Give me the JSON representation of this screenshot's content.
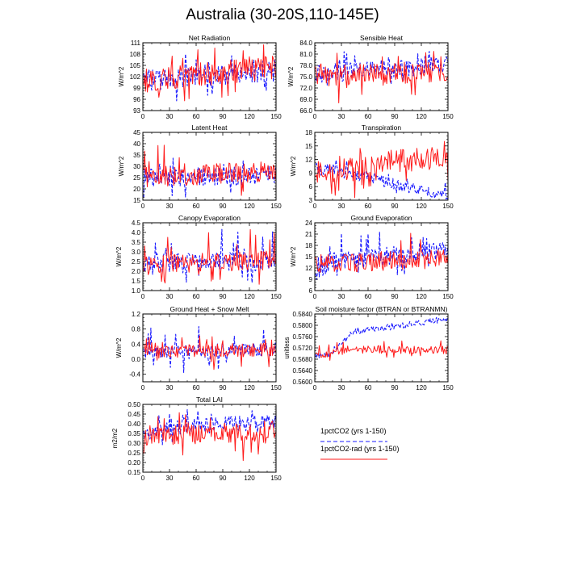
{
  "page": {
    "title": "Australia (30-20S,110-145E)"
  },
  "legend": [
    {
      "label": "1pctCO2 (yrs 1-150)",
      "color": "#1a1aff",
      "dashed": true
    },
    {
      "label": "1pctCO2-rad (yrs 1-150)",
      "color": "#ff1a1a",
      "dashed": false
    }
  ],
  "chart_data": [
    {
      "type": "line",
      "title": "Net Radiation",
      "ylabel": "W/m^2",
      "xlim": [
        0,
        150
      ],
      "ylim": [
        93,
        111
      ],
      "x_ticks": [
        0,
        30,
        60,
        90,
        120,
        150
      ],
      "y_ticks": [
        93,
        96,
        99,
        102,
        105,
        108,
        111
      ],
      "series_desc": [
        {
          "name": "1pctCO2",
          "mean": [
            [
              0,
              101
            ],
            [
              150,
              103.5
            ]
          ],
          "amp": 3.0,
          "spike": 4.0,
          "trough": 4.0
        },
        {
          "name": "1pctCO2-rad",
          "mean": [
            [
              0,
              101
            ],
            [
              150,
              104.5
            ]
          ],
          "amp": 3.2,
          "spike": 5.0,
          "trough": 5.0
        }
      ]
    },
    {
      "type": "line",
      "title": "Sensible Heat",
      "ylabel": "W/m^2",
      "xlim": [
        0,
        150
      ],
      "ylim": [
        66,
        84
      ],
      "x_ticks": [
        0,
        30,
        60,
        90,
        120,
        150
      ],
      "y_ticks": [
        66.0,
        69.0,
        72.0,
        75.0,
        78.0,
        81.0,
        84.0
      ],
      "y_tick_decimals": 1,
      "series_desc": [
        {
          "name": "1pctCO2",
          "mean": [
            [
              0,
              75.5
            ],
            [
              150,
              78.5
            ]
          ],
          "amp": 2.5,
          "spike": 3.5,
          "trough": 3.0
        },
        {
          "name": "1pctCO2-rad",
          "mean": [
            [
              0,
              75.5
            ],
            [
              150,
              76
            ]
          ],
          "amp": 3.0,
          "spike": 4.5,
          "trough": 5.5
        }
      ]
    },
    {
      "type": "line",
      "title": "Latent Heat",
      "ylabel": "W/m^2",
      "xlim": [
        0,
        150
      ],
      "ylim": [
        15,
        45
      ],
      "x_ticks": [
        0,
        30,
        60,
        90,
        120,
        150
      ],
      "y_ticks": [
        15,
        20,
        25,
        30,
        35,
        40,
        45
      ],
      "series_desc": [
        {
          "name": "1pctCO2",
          "mean": [
            [
              0,
              25
            ],
            [
              150,
              26
            ]
          ],
          "amp": 4.0,
          "spike": 11,
          "trough": 6.0
        },
        {
          "name": "1pctCO2-rad",
          "mean": [
            [
              0,
              25
            ],
            [
              150,
              28
            ]
          ],
          "amp": 4.5,
          "spike": 12,
          "trough": 7.0
        }
      ]
    },
    {
      "type": "line",
      "title": "Transpiration",
      "ylabel": "W/m^2",
      "xlim": [
        0,
        150
      ],
      "ylim": [
        3,
        18
      ],
      "x_ticks": [
        0,
        30,
        60,
        90,
        120,
        150
      ],
      "y_ticks": [
        3,
        6,
        9,
        12,
        15,
        18
      ],
      "series_desc": [
        {
          "name": "1pctCO2",
          "mean": [
            [
              0,
              10
            ],
            [
              30,
              9.5
            ],
            [
              60,
              8
            ],
            [
              90,
              6.5
            ],
            [
              120,
              5
            ],
            [
              150,
              4
            ]
          ],
          "amp": 1.2,
          "spike": 2.0,
          "trough": 1.0
        },
        {
          "name": "1pctCO2-rad",
          "mean": [
            [
              0,
              9
            ],
            [
              40,
              10
            ],
            [
              80,
              11.5
            ],
            [
              150,
              12.5
            ]
          ],
          "amp": 2.5,
          "spike": 3.5,
          "trough": 5.0
        }
      ]
    },
    {
      "type": "line",
      "title": "Canopy Evaporation",
      "ylabel": "W/m^2",
      "xlim": [
        0,
        150
      ],
      "ylim": [
        1.0,
        4.5
      ],
      "x_ticks": [
        0,
        30,
        60,
        90,
        120,
        150
      ],
      "y_ticks": [
        1.0,
        1.5,
        2.0,
        2.5,
        3.0,
        3.5,
        4.0,
        4.5
      ],
      "y_tick_decimals": 1,
      "series_desc": [
        {
          "name": "1pctCO2",
          "mean": [
            [
              0,
              2.4
            ],
            [
              150,
              2.5
            ]
          ],
          "amp": 0.5,
          "spike": 1.6,
          "trough": 0.7
        },
        {
          "name": "1pctCO2-rad",
          "mean": [
            [
              0,
              2.3
            ],
            [
              150,
              2.6
            ]
          ],
          "amp": 0.5,
          "spike": 1.7,
          "trough": 0.8
        }
      ]
    },
    {
      "type": "line",
      "title": "Ground Evaporation",
      "ylabel": "W/m^2",
      "xlim": [
        0,
        150
      ],
      "ylim": [
        6,
        24
      ],
      "x_ticks": [
        0,
        30,
        60,
        90,
        120,
        150
      ],
      "y_ticks": [
        6,
        9,
        12,
        15,
        18,
        21,
        24
      ],
      "series_desc": [
        {
          "name": "1pctCO2",
          "mean": [
            [
              0,
              13
            ],
            [
              150,
              17
            ]
          ],
          "amp": 2.5,
          "spike": 6.5,
          "trough": 3.0
        },
        {
          "name": "1pctCO2-rad",
          "mean": [
            [
              0,
              13
            ],
            [
              150,
              14.5
            ]
          ],
          "amp": 2.5,
          "spike": 6.0,
          "trough": 3.0
        }
      ]
    },
    {
      "type": "line",
      "title": "Ground Heat + Snow Melt",
      "ylabel": "W/m^2",
      "xlim": [
        0,
        150
      ],
      "ylim": [
        -0.6,
        1.2
      ],
      "x_ticks": [
        0,
        30,
        60,
        90,
        120,
        150
      ],
      "y_ticks": [
        -0.4,
        0.0,
        0.4,
        0.8,
        1.2
      ],
      "y_tick_decimals": 1,
      "series_desc": [
        {
          "name": "1pctCO2",
          "mean": [
            [
              0,
              0.2
            ],
            [
              150,
              0.25
            ]
          ],
          "amp": 0.18,
          "spike": 0.55,
          "trough": 0.45
        },
        {
          "name": "1pctCO2-rad",
          "mean": [
            [
              0,
              0.2
            ],
            [
              150,
              0.25
            ]
          ],
          "amp": 0.18,
          "spike": 0.3,
          "trough": 0.35
        }
      ]
    },
    {
      "type": "line",
      "title": "Soil moisture factor (BTRAN or BTRANMN)",
      "ylabel": "unitless",
      "xlim": [
        0,
        150
      ],
      "ylim": [
        0.56,
        0.584
      ],
      "x_ticks": [
        0,
        30,
        60,
        90,
        120,
        150
      ],
      "y_ticks": [
        0.56,
        0.564,
        0.568,
        0.572,
        0.576,
        0.58,
        0.584
      ],
      "y_tick_decimals": 4,
      "series_desc": [
        {
          "name": "1pctCO2",
          "mean": [
            [
              0,
              0.569
            ],
            [
              20,
              0.57
            ],
            [
              40,
              0.5775
            ],
            [
              80,
              0.579
            ],
            [
              120,
              0.581
            ],
            [
              150,
              0.5822
            ]
          ],
          "amp": 0.001,
          "spike": 0.0008,
          "trough": 0.001
        },
        {
          "name": "1pctCO2-rad",
          "mean": [
            [
              0,
              0.569
            ],
            [
              20,
              0.5705
            ],
            [
              40,
              0.5715
            ],
            [
              150,
              0.5712
            ]
          ],
          "amp": 0.0014,
          "spike": 0.0025,
          "trough": 0.002
        }
      ]
    },
    {
      "type": "line",
      "title": "Total LAI",
      "ylabel": "m2/m2",
      "xlim": [
        0,
        150
      ],
      "ylim": [
        0.15,
        0.5
      ],
      "x_ticks": [
        0,
        30,
        60,
        90,
        120,
        150
      ],
      "y_ticks": [
        0.15,
        0.2,
        0.25,
        0.3,
        0.35,
        0.4,
        0.45,
        0.5
      ],
      "y_tick_decimals": 2,
      "series_desc": [
        {
          "name": "1pctCO2",
          "mean": [
            [
              0,
              0.34
            ],
            [
              40,
              0.39
            ],
            [
              100,
              0.4
            ],
            [
              150,
              0.41
            ]
          ],
          "amp": 0.04,
          "spike": 0.07,
          "trough": 0.05
        },
        {
          "name": "1pctCO2-rad",
          "mean": [
            [
              0,
              0.34
            ],
            [
              150,
              0.35
            ]
          ],
          "amp": 0.05,
          "spike": 0.1,
          "trough": 0.15
        }
      ]
    }
  ]
}
